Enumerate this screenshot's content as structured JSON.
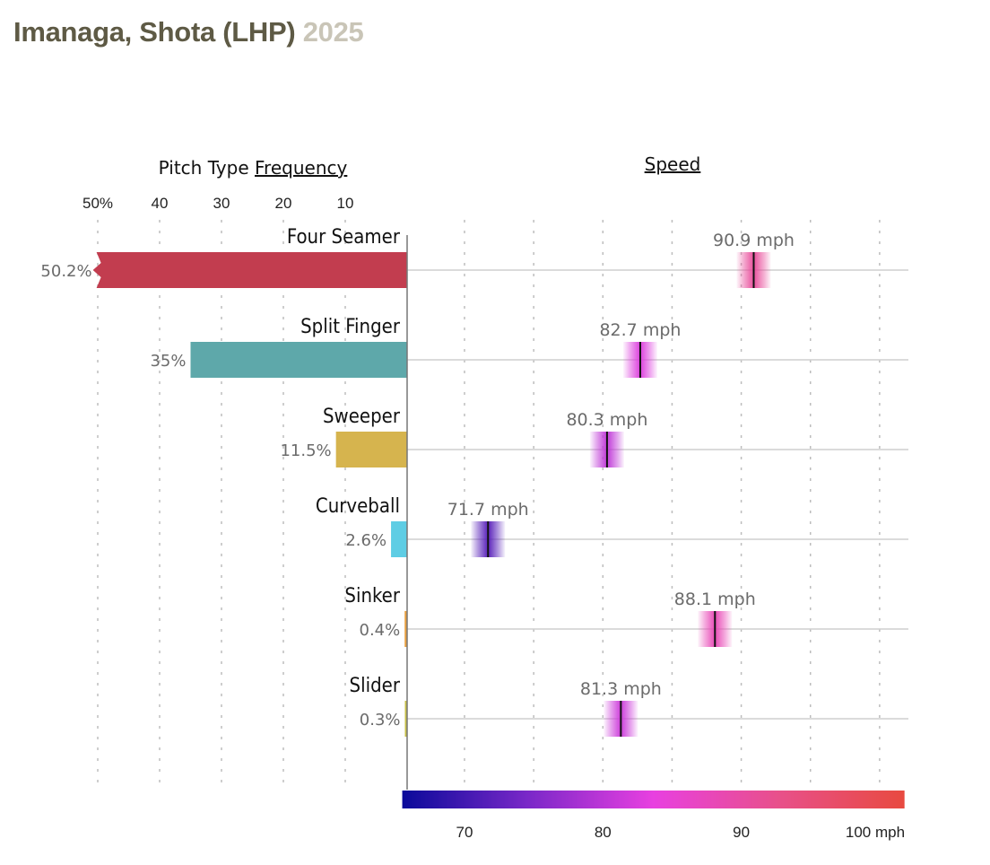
{
  "header": {
    "player": "Imanaga, Shota (LHP)",
    "year": "2025"
  },
  "chart_data": {
    "type": "bar",
    "title": "Imanaga, Shota (LHP) 2025",
    "panels": {
      "frequency": {
        "title_prefix": "Pitch Type ",
        "title_link": "Frequency",
        "xlim": [
          0,
          50
        ],
        "ticks": [
          50,
          40,
          30,
          20,
          10
        ],
        "tick_labels": [
          "50%",
          "40",
          "30",
          "20",
          "10"
        ],
        "direction": "right-to-left"
      },
      "speed": {
        "title_link": "Speed",
        "xlim": [
          65.5,
          101.8
        ],
        "grid": [
          70,
          75,
          80,
          85,
          90,
          95,
          100
        ],
        "ticks": [
          70,
          80,
          90,
          100
        ],
        "tick_labels": [
          "70",
          "80",
          "90",
          "100 mph"
        ],
        "colorscale": [
          "#0a0a9a",
          "#7a28c8",
          "#e840e0",
          "#e8508a",
          "#e84a40"
        ]
      }
    },
    "categories": [
      "Four Seamer",
      "Split Finger",
      "Sweeper",
      "Curveball",
      "Sinker",
      "Slider"
    ],
    "series": [
      {
        "name": "Frequency (%)",
        "values": [
          50.2,
          35,
          11.5,
          2.6,
          0.4,
          0.3
        ],
        "labels": [
          "50.2%",
          "35%",
          "11.5%",
          "2.6%",
          "0.4%",
          "0.3%"
        ],
        "colors": [
          "#c23d4f",
          "#5ea8aa",
          "#d6b44e",
          "#5ecde4",
          "#e8a040",
          "#c8c048"
        ]
      },
      {
        "name": "Speed (mph)",
        "values": [
          90.9,
          82.7,
          80.3,
          71.7,
          88.1,
          81.3
        ],
        "labels": [
          "90.9 mph",
          "82.7 mph",
          "80.3 mph",
          "71.7 mph",
          "88.1 mph",
          "81.3 mph"
        ]
      }
    ],
    "truncated": [
      true,
      false,
      false,
      false,
      false,
      false
    ]
  }
}
